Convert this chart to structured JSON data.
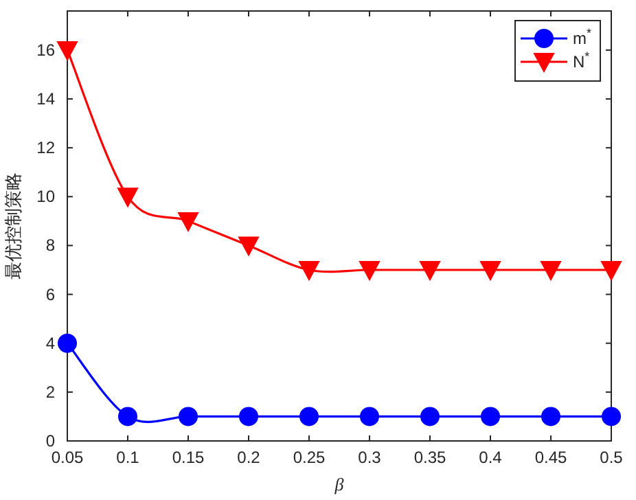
{
  "chart_data": {
    "type": "line",
    "xlabel": "β",
    "ylabel": "最优控制策略",
    "x": [
      0.05,
      0.1,
      0.15,
      0.2,
      0.25,
      0.3,
      0.35,
      0.4,
      0.45,
      0.5
    ],
    "series": [
      {
        "name": "m$^{*}$",
        "color": "#0000ff",
        "marker": "circle",
        "values": [
          4,
          1,
          1,
          1,
          1,
          1,
          1,
          1,
          1,
          1
        ]
      },
      {
        "name": "N$^{*}$",
        "color": "#ff0000",
        "marker": "triangle",
        "values": [
          16,
          10,
          9,
          8,
          7,
          7,
          7,
          7,
          7,
          7
        ]
      }
    ],
    "xlim": [
      0.05,
      0.5
    ],
    "xticks": [
      0.05,
      0.1,
      0.15,
      0.2,
      0.25,
      0.3,
      0.35,
      0.4,
      0.45,
      0.5
    ],
    "ylim": [
      0,
      17.6
    ],
    "yticks": [
      0,
      2,
      4,
      6,
      8,
      10,
      12,
      14,
      16
    ],
    "legend": "top right",
    "line_style": "solid"
  }
}
